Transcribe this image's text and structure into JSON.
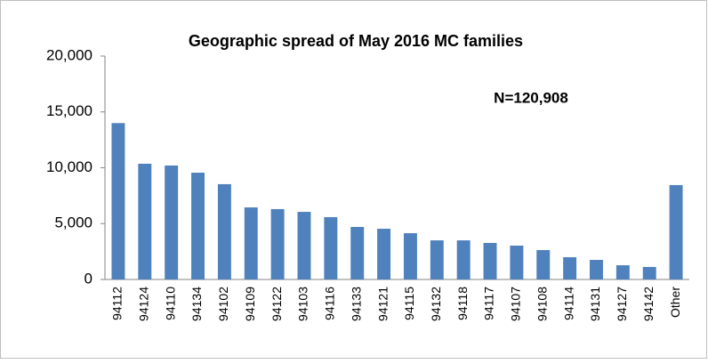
{
  "chart_data": {
    "type": "bar",
    "title": "Geographic spread of  May 2016 MC families",
    "annotation": "N=120,908",
    "categories": [
      "94112",
      "94124",
      "94110",
      "94134",
      "94102",
      "94109",
      "94122",
      "94103",
      "94116",
      "94133",
      "94121",
      "94115",
      "94132",
      "94118",
      "94117",
      "94107",
      "94108",
      "94114",
      "94131",
      "94127",
      "94142",
      "Other"
    ],
    "values": [
      14000,
      10360,
      10200,
      9560,
      8530,
      6450,
      6300,
      6050,
      5580,
      4700,
      4540,
      4140,
      3500,
      3500,
      3270,
      3030,
      2630,
      1990,
      1750,
      1270,
      1120,
      8450
    ],
    "color": "#4f81bd",
    "ylim": [
      0,
      20000
    ],
    "yticks": [
      0,
      {
        "value": 5000,
        "label": "5,000"
      },
      {
        "value": 10000,
        "label": "10,000"
      },
      {
        "value": 15000,
        "label": "15,000"
      },
      {
        "value": 20000,
        "label": "20,000"
      }
    ],
    "grid": false
  }
}
